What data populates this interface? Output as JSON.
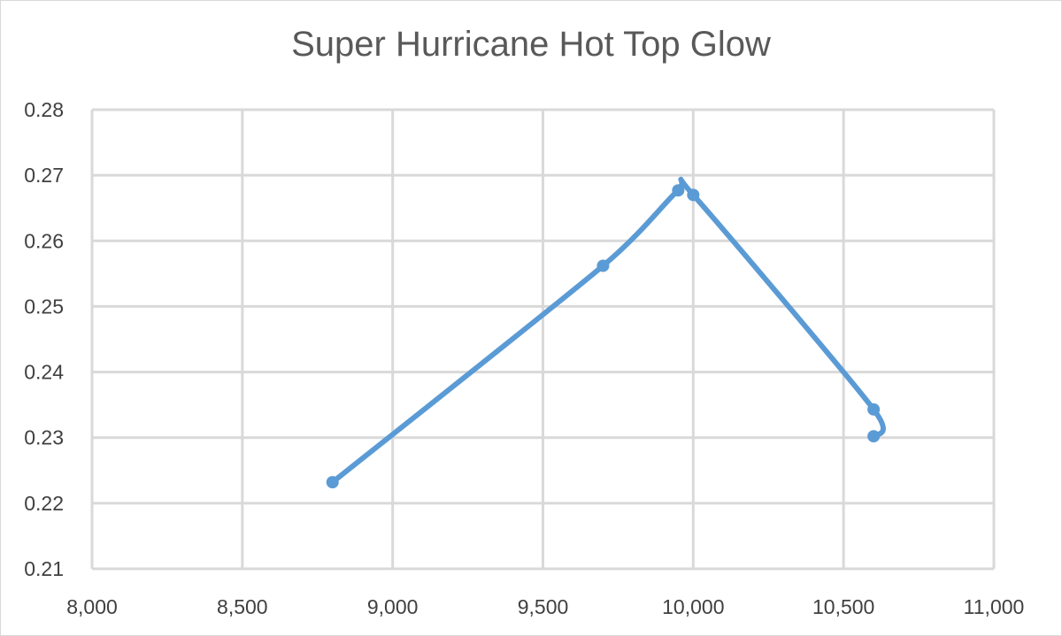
{
  "chart_data": {
    "type": "scatter",
    "title": "Super Hurricane Hot Top Glow",
    "xlabel": "",
    "ylabel": "",
    "xlim": [
      8000,
      11000
    ],
    "ylim": [
      0.21,
      0.28
    ],
    "x_ticks": [
      8000,
      8500,
      9000,
      9500,
      10000,
      10500,
      11000
    ],
    "x_tick_labels": [
      "8,000",
      "8,500",
      "9,000",
      "9,500",
      "10,000",
      "10,500",
      "11,000"
    ],
    "y_ticks": [
      0.21,
      0.22,
      0.23,
      0.24,
      0.25,
      0.26,
      0.27,
      0.28
    ],
    "y_tick_labels": [
      "0.21",
      "0.22",
      "0.23",
      "0.24",
      "0.25",
      "0.26",
      "0.27",
      "0.28"
    ],
    "grid": true,
    "smooth_line": true,
    "series": [
      {
        "color": "#5b9bd5",
        "points": [
          {
            "x": 8800,
            "y": 0.2232
          },
          {
            "x": 9700,
            "y": 0.2562
          },
          {
            "x": 9950,
            "y": 0.2677
          },
          {
            "x": 10000,
            "y": 0.267
          },
          {
            "x": 10600,
            "y": 0.2343
          },
          {
            "x": 10600,
            "y": 0.2302
          }
        ]
      }
    ]
  }
}
